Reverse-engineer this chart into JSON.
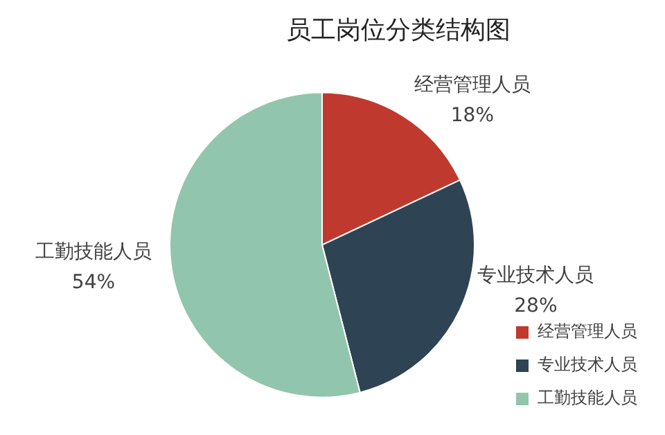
{
  "chart_data": {
    "type": "pie",
    "title": "员工岗位分类结构图",
    "categories": [
      "经营管理人员",
      "专业技术人员",
      "工勤技能人员"
    ],
    "values": [
      18,
      28,
      54
    ],
    "colors": [
      "#c0392f",
      "#2e4353",
      "#92c5ad"
    ],
    "value_labels": [
      "18%",
      "28%",
      "54%"
    ],
    "legend": "bottom right"
  }
}
